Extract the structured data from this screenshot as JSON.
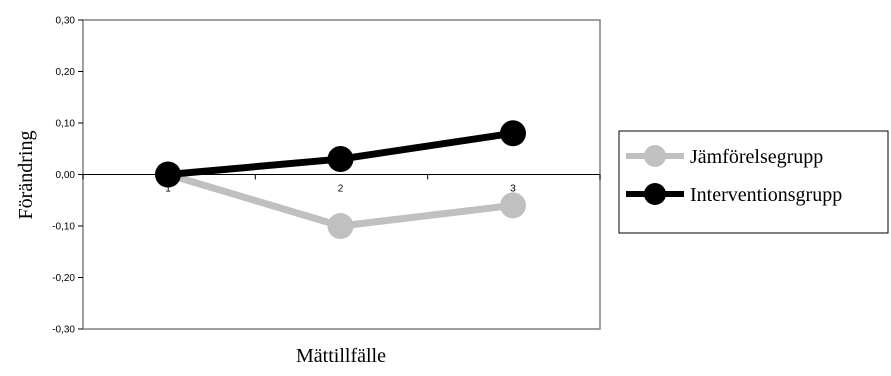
{
  "chart_data": {
    "type": "line",
    "title": "",
    "xlabel": "Mättillfälle",
    "ylabel": "Förändring",
    "categories": [
      "1",
      "2",
      "3"
    ],
    "y_ticks": [
      "0,30",
      "0,20",
      "0,10",
      "0,00",
      "-0,10",
      "-0,20",
      "-0,30"
    ],
    "ylim": [
      -0.3,
      0.3
    ],
    "grid": false,
    "legend_position": "right",
    "series": [
      {
        "name": "Jämförelsegrupp",
        "color": "#c0c0c0",
        "values": [
          0.0,
          -0.1,
          -0.06
        ]
      },
      {
        "name": "Interventionsgrupp",
        "color": "#000000",
        "values": [
          0.0,
          0.03,
          0.08
        ]
      }
    ]
  }
}
